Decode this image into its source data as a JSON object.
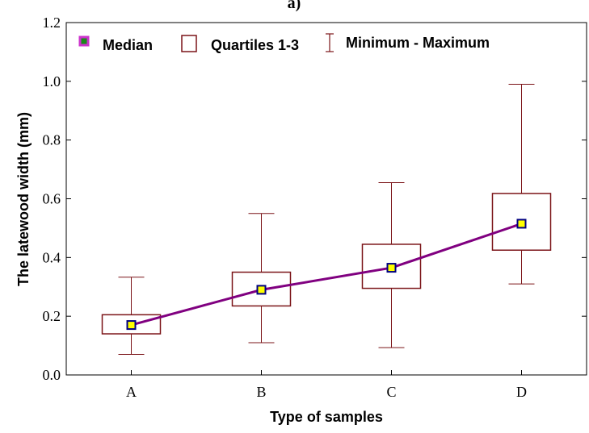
{
  "chart_data": {
    "type": "boxplot",
    "title": "a)",
    "xlabel": "Type of samples",
    "ylabel": "The latewood width (mm)",
    "categories": [
      "A",
      "B",
      "C",
      "D"
    ],
    "ylim": [
      0.0,
      1.2
    ],
    "yticks": [
      0.0,
      0.2,
      0.4,
      0.6,
      0.8,
      1.0,
      1.2
    ],
    "ytick_labels": [
      "0.0",
      "0.2",
      "0.4",
      "0.6",
      "0.8",
      "1.0",
      "1.2"
    ],
    "grid": false,
    "legend_position": "top",
    "series": [
      {
        "name": "Median",
        "values": [
          0.17,
          0.29,
          0.365,
          0.515
        ]
      },
      {
        "name": "Quartiles 1-3",
        "q1": [
          0.14,
          0.235,
          0.295,
          0.425
        ],
        "q3": [
          0.205,
          0.35,
          0.445,
          0.618
        ]
      },
      {
        "name": "Minimum - Maximum",
        "min": [
          0.07,
          0.11,
          0.093,
          0.31
        ],
        "max": [
          0.333,
          0.55,
          0.655,
          0.99
        ]
      }
    ],
    "legend": [
      {
        "label": "Median",
        "symbol": "median"
      },
      {
        "label": "Quartiles 1-3",
        "symbol": "box"
      },
      {
        "label": "Minimum - Maximum",
        "symbol": "whisker"
      }
    ],
    "colors": {
      "box": "#7b1418",
      "median_line": "#800080",
      "median_fill": "#ffff00",
      "median_edge": "#000080",
      "legend_median_fill": "#1a8a1a",
      "legend_median_edge": "#cc33cc",
      "axis": "#000000"
    }
  }
}
